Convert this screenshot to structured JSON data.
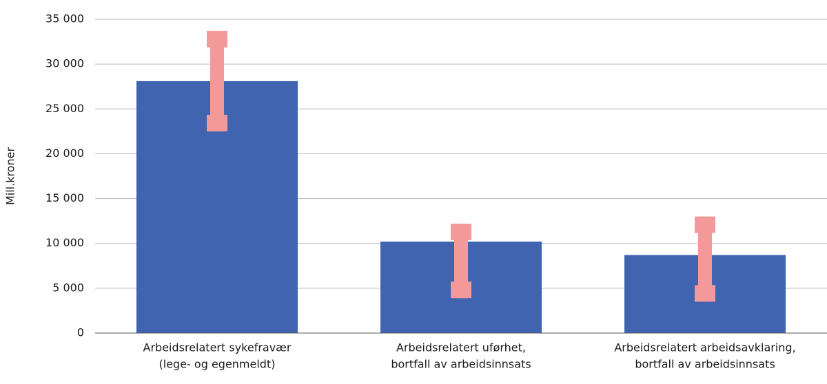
{
  "chart_data": {
    "type": "bar",
    "y_label": "Mill.kroner",
    "categories": [
      [
        "Arbeidsrelatert sykefravær",
        "(lege- og egenmeldt)"
      ],
      [
        "Arbeidsrelatert uførhet,",
        "bortfall av arbeidsinnsats"
      ],
      [
        "Arbeidsrelatert arbeidsavklaring,",
        "bortfall av arbeidsinnsats"
      ]
    ],
    "values": [
      28100,
      10200,
      8700
    ],
    "error_lower": [
      22500,
      3900,
      3500
    ],
    "error_upper": [
      33700,
      12200,
      13000
    ],
    "color": "#4064af",
    "error_color": "#f4999a",
    "ylim": [
      0,
      35000
    ],
    "yticks": [
      {
        "value": 0,
        "label": "0"
      },
      {
        "value": 5000,
        "label": "5 000"
      },
      {
        "value": 10000,
        "label": "10 000"
      },
      {
        "value": 15000,
        "label": "15 000"
      },
      {
        "value": 20000,
        "label": "20 000"
      },
      {
        "value": 25000,
        "label": "25 000"
      },
      {
        "value": 30000,
        "label": "30 000"
      },
      {
        "value": 35000,
        "label": "35 000"
      }
    ],
    "grid": true
  }
}
